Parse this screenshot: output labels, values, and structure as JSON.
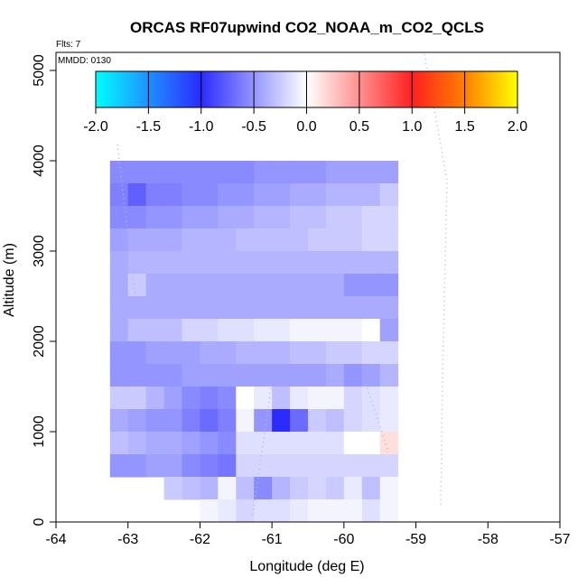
{
  "chart_data": {
    "type": "heatmap",
    "title": "ORCAS RF07upwind CO2_NOAA_m_CO2_QCLS",
    "xlabel": "Longitude (deg E)",
    "ylabel": "Altitude (m)",
    "xlim": [
      -64,
      -57
    ],
    "ylim": [
      0,
      5200
    ],
    "x_ticks": [
      "-64",
      "-63",
      "-62",
      "-61",
      "-60",
      "-59",
      "-58",
      "-57"
    ],
    "y_ticks": [
      "0",
      "1000",
      "2000",
      "3000",
      "4000",
      "5000"
    ],
    "flights_label": "Flts: 7",
    "date_label": "MMDD: 0130",
    "colorbar": {
      "range": [
        -2.0,
        2.0
      ],
      "ticks": [
        "-2.0",
        "-1.5",
        "-1.0",
        "-0.5",
        "0.0",
        "0.5",
        "1.0",
        "1.5",
        "2.0"
      ],
      "colors": {
        "neg_outer": "#00ffff",
        "neg_mid": "#1f90ff",
        "neg_inner": "#2b2bff",
        "zero": "#ffffff",
        "pos_inner": "#ff2020",
        "pos_mid": "#ff8000",
        "pos_outer": "#ffff00"
      }
    },
    "cell_size": {
      "dlon": 0.25,
      "dalt": 250
    },
    "grid": {
      "lon_start": -63.25,
      "alt_top": 4000
    },
    "rows": [
      [
        -0.55,
        -0.55,
        -0.55,
        -0.55,
        -0.55,
        -0.55,
        -0.55,
        -0.55,
        -0.5,
        -0.5,
        -0.5,
        -0.5,
        -0.45,
        -0.45,
        -0.45,
        -0.45
      ],
      [
        -0.6,
        -0.75,
        -0.6,
        -0.6,
        -0.55,
        -0.55,
        -0.5,
        -0.5,
        -0.45,
        -0.45,
        -0.4,
        -0.4,
        -0.35,
        -0.35,
        -0.35,
        -0.25
      ],
      [
        -0.55,
        -0.55,
        -0.5,
        -0.5,
        -0.45,
        -0.45,
        -0.4,
        -0.4,
        -0.35,
        -0.35,
        -0.3,
        -0.3,
        -0.25,
        -0.25,
        -0.2,
        -0.2
      ],
      [
        -0.45,
        -0.4,
        -0.4,
        -0.4,
        -0.35,
        -0.35,
        -0.35,
        -0.3,
        -0.3,
        -0.3,
        -0.3,
        -0.25,
        -0.25,
        -0.25,
        -0.2,
        -0.2
      ],
      [
        -0.4,
        -0.35,
        -0.35,
        -0.35,
        -0.35,
        -0.35,
        -0.35,
        -0.35,
        -0.35,
        -0.35,
        -0.35,
        -0.35,
        -0.35,
        -0.35,
        -0.35,
        -0.35
      ],
      [
        -0.4,
        -0.25,
        -0.4,
        -0.4,
        -0.4,
        -0.4,
        -0.4,
        -0.4,
        -0.4,
        -0.4,
        -0.4,
        -0.4,
        -0.4,
        -0.5,
        -0.5,
        -0.5
      ],
      [
        -0.4,
        -0.4,
        -0.4,
        -0.4,
        -0.4,
        -0.4,
        -0.4,
        -0.4,
        -0.4,
        -0.4,
        -0.4,
        -0.4,
        -0.4,
        -0.4,
        -0.4,
        -0.4
      ],
      [
        -0.4,
        -0.3,
        -0.3,
        -0.3,
        -0.2,
        -0.2,
        -0.15,
        -0.15,
        -0.1,
        -0.1,
        -0.05,
        -0.05,
        -0.05,
        -0.05,
        0.0,
        -0.45
      ],
      [
        -0.5,
        -0.5,
        -0.45,
        -0.45,
        -0.45,
        -0.4,
        -0.4,
        -0.35,
        -0.35,
        -0.35,
        -0.3,
        -0.3,
        -0.25,
        -0.25,
        -0.2,
        -0.2
      ],
      [
        -0.5,
        -0.5,
        -0.5,
        -0.5,
        -0.45,
        -0.45,
        -0.45,
        -0.45,
        -0.45,
        -0.45,
        -0.45,
        -0.45,
        -0.4,
        -0.5,
        -0.45,
        -0.35
      ],
      [
        -0.25,
        -0.25,
        -0.35,
        -0.45,
        -0.55,
        -0.6,
        -0.55,
        0.0,
        -0.1,
        -0.3,
        -0.1,
        -0.05,
        -0.05,
        -0.2,
        -0.15,
        -0.1
      ],
      [
        -0.4,
        -0.45,
        -0.5,
        -0.5,
        -0.6,
        -0.7,
        -0.6,
        -0.05,
        -0.5,
        -1.0,
        -0.7,
        -0.25,
        -0.3,
        -0.2,
        -0.15,
        -0.1
      ],
      [
        -0.3,
        -0.35,
        -0.4,
        -0.4,
        -0.45,
        -0.5,
        -0.55,
        -0.15,
        -0.15,
        -0.15,
        -0.15,
        -0.15,
        -0.15,
        0.0,
        0.0,
        0.15
      ],
      [
        -0.5,
        -0.5,
        -0.45,
        -0.45,
        -0.55,
        -0.6,
        -0.65,
        -0.2,
        -0.2,
        -0.2,
        -0.2,
        -0.2,
        -0.2,
        -0.2,
        -0.2,
        -0.2
      ],
      [
        null,
        null,
        null,
        -0.25,
        -0.3,
        -0.35,
        -0.05,
        -0.3,
        -0.55,
        -0.35,
        -0.25,
        -0.2,
        -0.25,
        -0.1,
        -0.3,
        -0.05
      ],
      [
        null,
        null,
        null,
        null,
        null,
        -0.05,
        -0.1,
        -0.2,
        -0.15,
        -0.15,
        -0.1,
        -0.05,
        -0.05,
        -0.05,
        -0.15,
        -0.05
      ]
    ]
  }
}
